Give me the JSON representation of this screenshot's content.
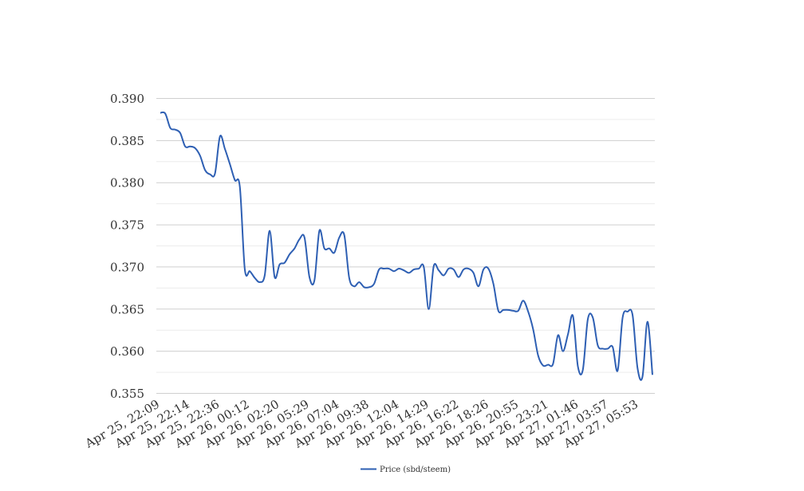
{
  "chart_data": {
    "type": "line",
    "title": "",
    "xlabel": "",
    "ylabel": "",
    "ylim": [
      0.355,
      0.39
    ],
    "yticks": [
      "0.390",
      "0.385",
      "0.380",
      "0.375",
      "0.370",
      "0.365",
      "0.360",
      "0.355"
    ],
    "ytick_values": [
      0.39,
      0.385,
      0.38,
      0.375,
      0.37,
      0.365,
      0.36,
      0.355
    ],
    "grid": true,
    "legend_position": "bottom",
    "xtick_labels": [
      "Apr 25, 22:09",
      "Apr 25, 22:14",
      "Apr 25, 22:36",
      "Apr 26, 00:12",
      "Apr 26, 02:20",
      "Apr 26, 05:29",
      "Apr 26, 07:04",
      "Apr 26, 09:38",
      "Apr 26, 12:04",
      "Apr 26, 14:29",
      "Apr 26, 16:22",
      "Apr 26, 18:26",
      "Apr 26, 20:55",
      "Apr 26, 23:21",
      "Apr 27, 01:46",
      "Apr 27, 03:57",
      "Apr 27, 05:53"
    ],
    "series": [
      {
        "name": "Price (sbd/steem)",
        "color": "#2e5fb3",
        "values": [
          0.3883,
          0.3882,
          0.3865,
          0.3863,
          0.3859,
          0.3843,
          0.3843,
          0.3841,
          0.3832,
          0.3815,
          0.381,
          0.3811,
          0.3855,
          0.384,
          0.3822,
          0.3803,
          0.3795,
          0.3697,
          0.3695,
          0.3687,
          0.3682,
          0.369,
          0.3743,
          0.3688,
          0.3703,
          0.3705,
          0.3715,
          0.3722,
          0.3733,
          0.3735,
          0.3688,
          0.3684,
          0.3743,
          0.3722,
          0.3722,
          0.3717,
          0.3735,
          0.3738,
          0.3687,
          0.3677,
          0.3682,
          0.3676,
          0.3676,
          0.368,
          0.3697,
          0.3698,
          0.3698,
          0.3695,
          0.3698,
          0.3696,
          0.3693,
          0.3697,
          0.3698,
          0.37,
          0.365,
          0.3701,
          0.3696,
          0.369,
          0.3698,
          0.3697,
          0.3688,
          0.3697,
          0.3698,
          0.3693,
          0.3677,
          0.3697,
          0.3698,
          0.368,
          0.3648,
          0.3649,
          0.3649,
          0.3648,
          0.3648,
          0.366,
          0.3647,
          0.3626,
          0.3595,
          0.3583,
          0.3584,
          0.3585,
          0.3619,
          0.36,
          0.362,
          0.3642,
          0.3582,
          0.3578,
          0.3638,
          0.364,
          0.3607,
          0.3603,
          0.3603,
          0.3605,
          0.3577,
          0.364,
          0.3647,
          0.3643,
          0.358,
          0.357,
          0.3635,
          0.3572
        ]
      }
    ]
  }
}
